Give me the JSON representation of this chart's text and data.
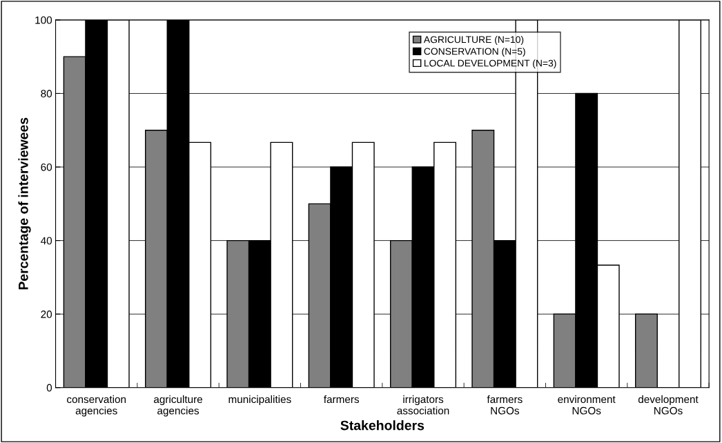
{
  "chart_data": {
    "type": "bar",
    "xlabel": "Stakeholders",
    "ylabel": "Percentage of interviewees",
    "categories": [
      "conservation\nagencies",
      "agriculture\nagencies",
      "municipalities",
      "farmers",
      "irrigators\nassociation",
      "farmers\nNGOs",
      "environment\nNGOs",
      "development\nNGOs"
    ],
    "series": [
      {
        "name": "AGRICULTURE (N=10)",
        "color": "#808080",
        "values": [
          90,
          70,
          40,
          50,
          40,
          70,
          20,
          20
        ]
      },
      {
        "name": "CONSERVATION (N=5)",
        "color": "#000000",
        "values": [
          100,
          100,
          40,
          60,
          60,
          40,
          80,
          0
        ]
      },
      {
        "name": "LOCAL DEVELOPMENT (N=3)",
        "color": "#ffffff",
        "values": [
          100,
          66.7,
          66.7,
          66.7,
          66.7,
          100,
          33.3,
          100
        ]
      }
    ],
    "ylim": [
      0,
      100
    ],
    "yticks": [
      0,
      20,
      40,
      60,
      80,
      100
    ],
    "grid": "y",
    "legend": "top right"
  }
}
